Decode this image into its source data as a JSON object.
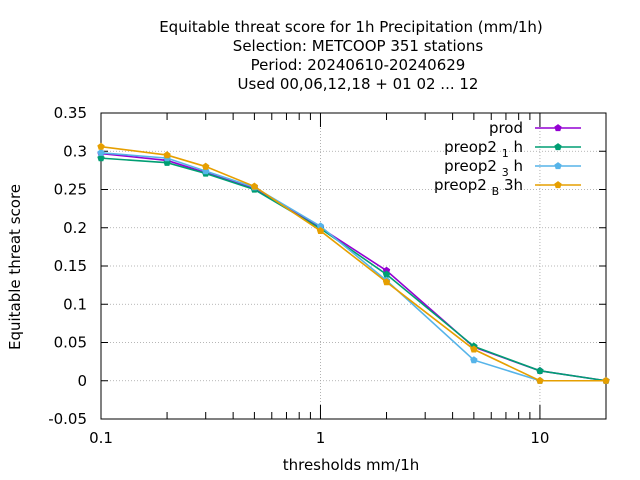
{
  "title_lines": [
    "Equitable threat score  for 1h Precipitation (mm/1h)",
    "Selection: METCOOP    351 stations",
    "Period: 20240610-20240629",
    "Used  00,06,12,18 + 01 02 ... 12"
  ],
  "chart_data": {
    "type": "line",
    "xlabel": "thresholds mm/1h",
    "ylabel": "Equitable threat score",
    "xscale": "log",
    "xlim": [
      0.1,
      20
    ],
    "ylim": [
      -0.05,
      0.35
    ],
    "grid": true,
    "legend_position": "top-right",
    "x_ticks": [
      {
        "value": 0.1,
        "label": "0.1"
      },
      {
        "value": 1,
        "label": "1"
      },
      {
        "value": 10,
        "label": "10"
      }
    ],
    "x_minor_ticks": [
      0.2,
      0.3,
      0.4,
      0.5,
      0.6,
      0.7,
      0.8,
      0.9,
      2,
      3,
      4,
      5,
      6,
      7,
      8,
      9,
      20
    ],
    "y_ticks": [
      {
        "value": -0.05,
        "label": "-0.05"
      },
      {
        "value": 0,
        "label": "0"
      },
      {
        "value": 0.05,
        "label": "0.05"
      },
      {
        "value": 0.1,
        "label": "0.1"
      },
      {
        "value": 0.15,
        "label": "0.15"
      },
      {
        "value": 0.2,
        "label": "0.2"
      },
      {
        "value": 0.25,
        "label": "0.25"
      },
      {
        "value": 0.3,
        "label": "0.3"
      },
      {
        "value": 0.35,
        "label": "0.35"
      }
    ],
    "x": [
      0.1,
      0.2,
      0.3,
      0.5,
      1,
      2,
      5,
      10,
      20
    ],
    "series": [
      {
        "name": "prod",
        "legend_main": "prod",
        "legend_sub": "",
        "legend_tail": "",
        "color": "#9400d3",
        "values": [
          0.297,
          0.288,
          0.272,
          0.251,
          0.2,
          0.144,
          0.044,
          0.013,
          0.0
        ]
      },
      {
        "name": "preop2 1 h",
        "legend_main": "preop2 ",
        "legend_sub": "1",
        "legend_tail": "h",
        "color": "#009e73",
        "values": [
          0.291,
          0.285,
          0.271,
          0.25,
          0.199,
          0.139,
          0.045,
          0.013,
          0.0
        ]
      },
      {
        "name": "preop2 3 h",
        "legend_main": "preop2 ",
        "legend_sub": "3",
        "legend_tail": "h",
        "color": "#56b4e9",
        "values": [
          0.298,
          0.291,
          0.274,
          0.253,
          0.202,
          0.131,
          0.027,
          0.0,
          0.0
        ]
      },
      {
        "name": "preop2 B 3h",
        "legend_main": "preop2 ",
        "legend_sub": "B",
        "legend_tail": "3h",
        "color": "#e69f00",
        "values": [
          0.306,
          0.295,
          0.28,
          0.254,
          0.196,
          0.129,
          0.041,
          0.0,
          0.0
        ]
      }
    ]
  }
}
